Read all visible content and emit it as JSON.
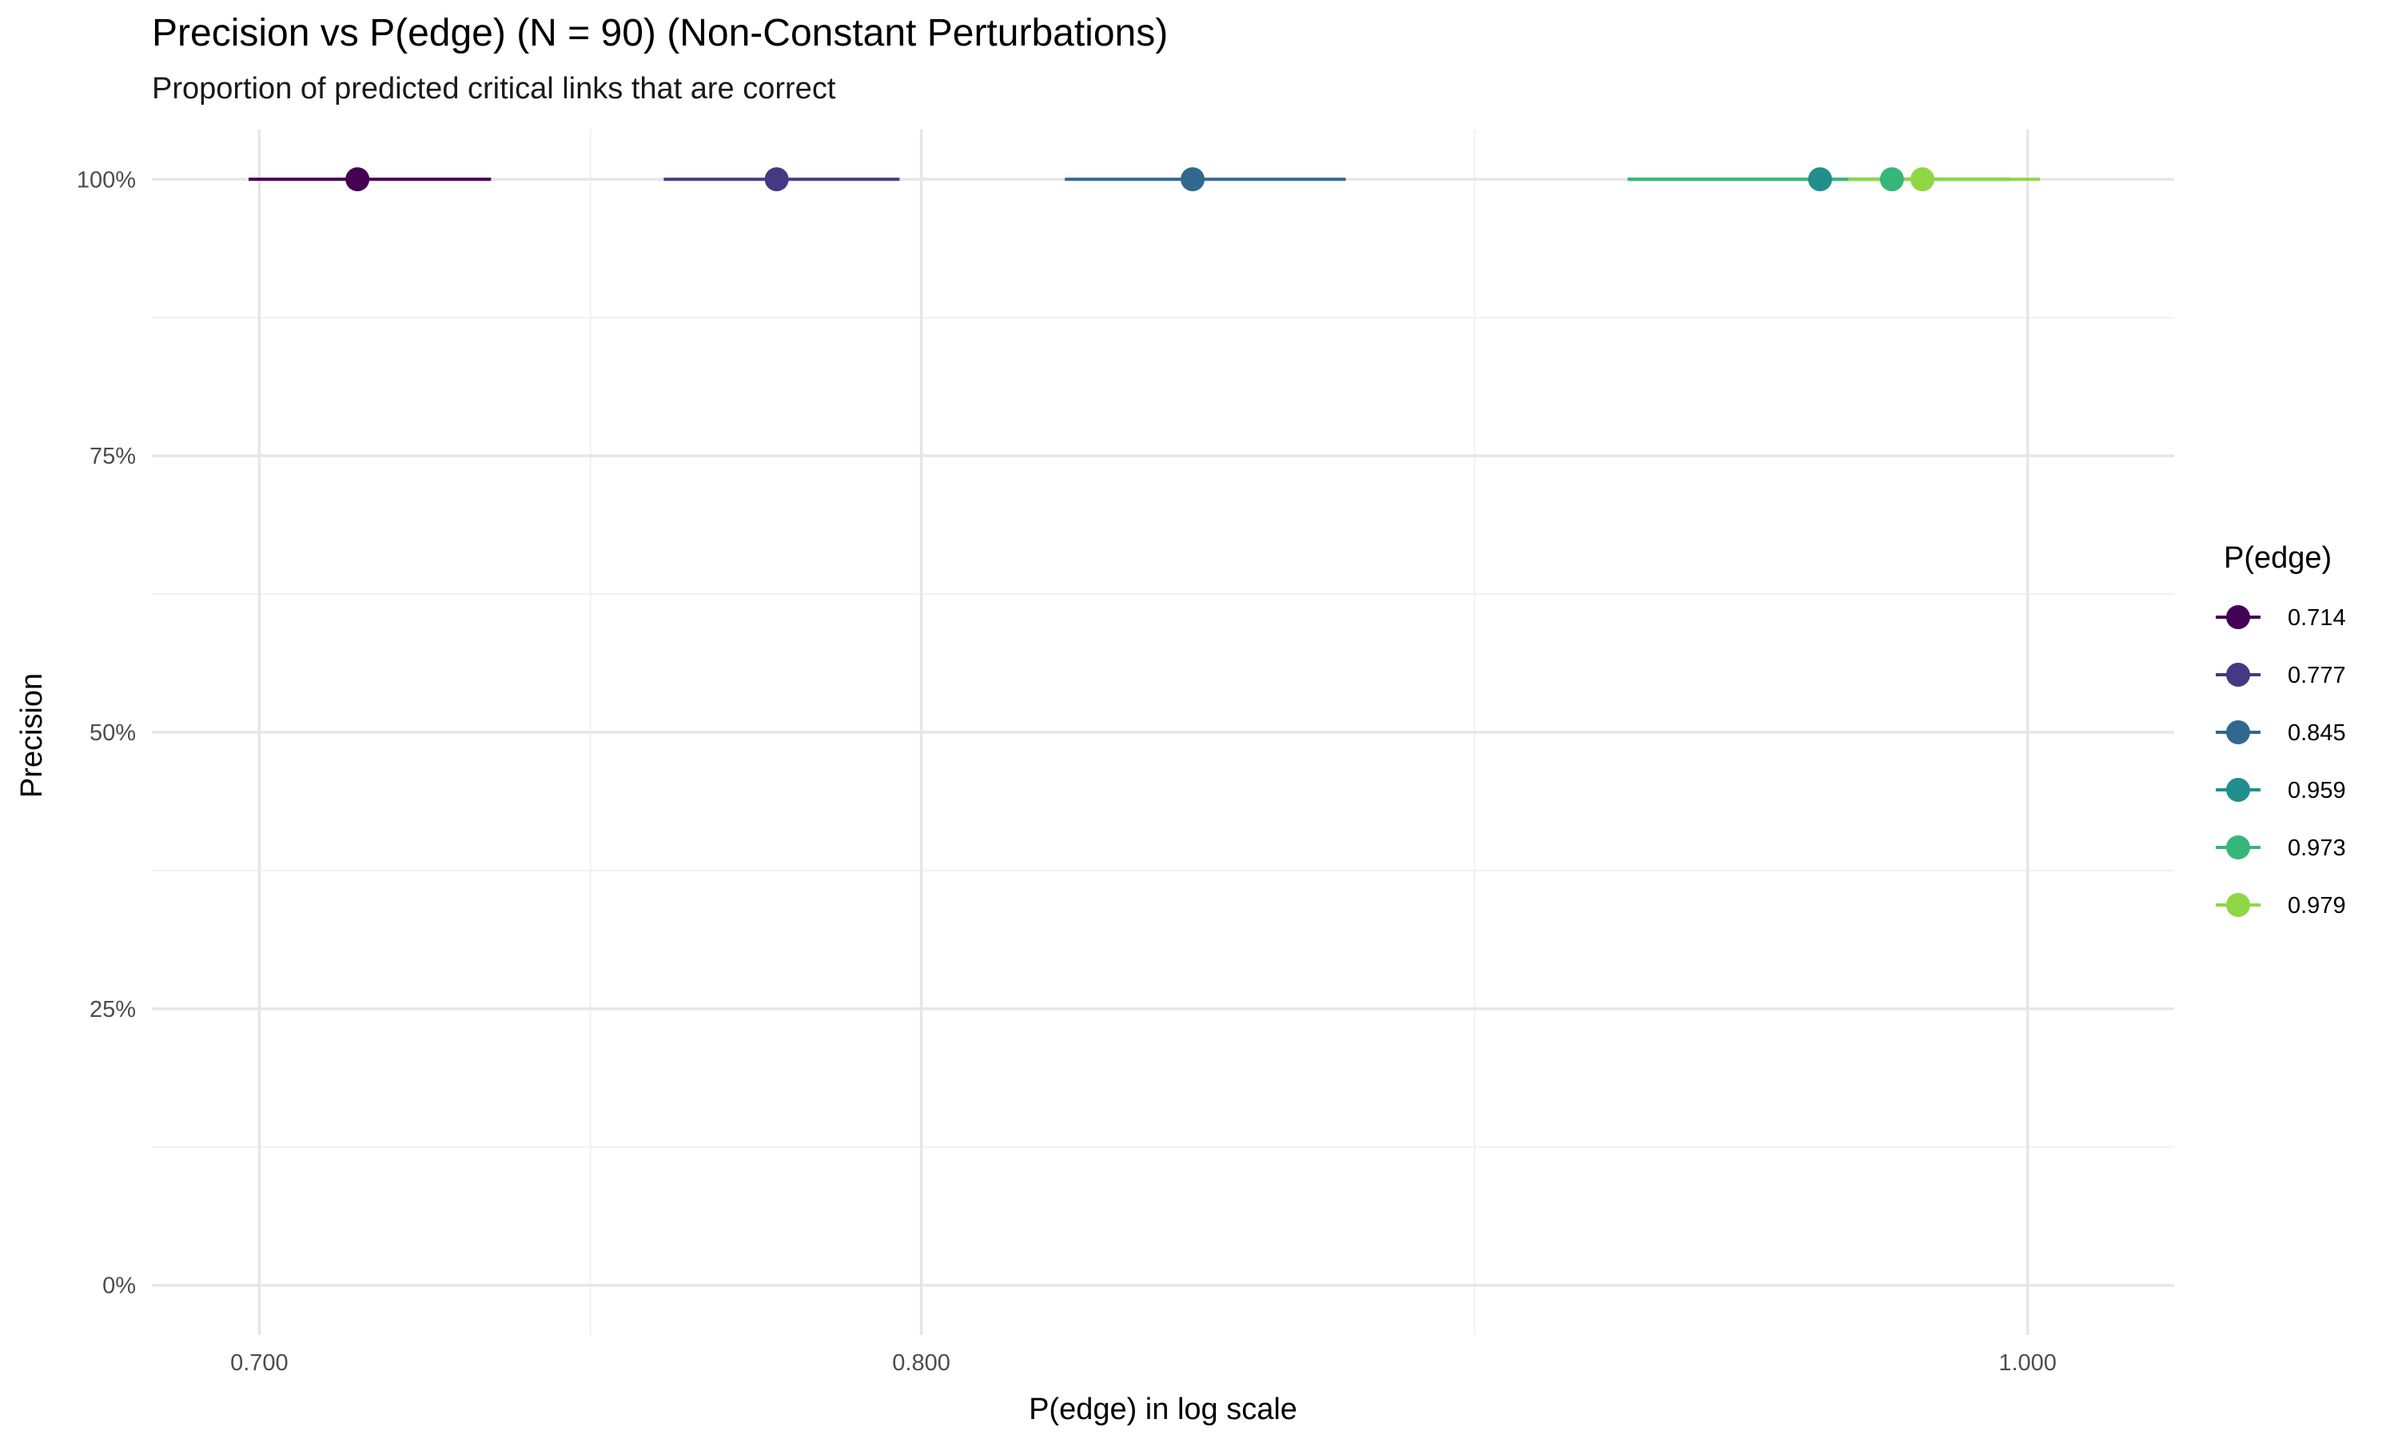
{
  "chart_data": {
    "type": "scatter",
    "title": "Precision vs P(edge) (N = 90) (Non-Constant Perturbations)",
    "subtitle": "Proportion of predicted critical links that are correct",
    "xlabel": "P(edge) in log scale",
    "ylabel": "Precision",
    "x_scale": "log",
    "xlim": [
      0.685,
      1.03
    ],
    "ylim": [
      -0.045,
      1.045
    ],
    "x_ticks": [
      0.7,
      0.8,
      1.0
    ],
    "x_tick_labels": [
      "0.700",
      "0.800",
      "1.000"
    ],
    "y_ticks": [
      0,
      0.25,
      0.5,
      0.75,
      1.0
    ],
    "y_tick_labels": [
      "0%",
      "25%",
      "50%",
      "75%",
      "100%"
    ],
    "grid": true,
    "legend": {
      "title": "P(edge)",
      "position": "right"
    },
    "series": [
      {
        "name": "0.714",
        "x": 0.714,
        "y": 1.0,
        "xmin": 0.6985,
        "xmax": 0.7335,
        "color": "#440154"
      },
      {
        "name": "0.777",
        "x": 0.777,
        "y": 1.0,
        "xmin": 0.7595,
        "xmax": 0.7965,
        "color": "#443A83"
      },
      {
        "name": "0.845",
        "x": 0.845,
        "y": 1.0,
        "xmin": 0.8235,
        "xmax": 0.8715,
        "color": "#31688E"
      },
      {
        "name": "0.959",
        "x": 0.959,
        "y": 1.0,
        "xmin": 0.9225,
        "xmax": 0.9965,
        "color": "#21908C"
      },
      {
        "name": "0.973",
        "x": 0.973,
        "y": 1.0,
        "xmin": 0.9225,
        "xmax": 0.9965,
        "color": "#35B779"
      },
      {
        "name": "0.979",
        "x": 0.979,
        "y": 1.0,
        "xmin": 0.9645,
        "xmax": 1.0025,
        "color": "#8FD744"
      }
    ]
  }
}
